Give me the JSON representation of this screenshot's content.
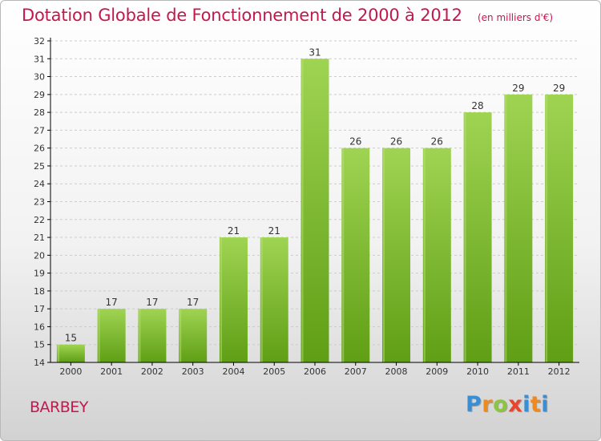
{
  "header": {
    "title": "Dotation Globale de Fonctionnement de 2000 à 2012",
    "unit_note": "(en milliers d'€)"
  },
  "commune_name": "BARBEY",
  "logo": {
    "text": "Proxiti"
  },
  "colors": {
    "title": "#c4174d",
    "bar_light": "#9fd452",
    "bar_dark": "#5f9e15",
    "axis": "#000000",
    "grid": "#cccccc"
  },
  "chart_data": {
    "type": "bar",
    "title": "Dotation Globale de Fonctionnement de 2000 à 2012",
    "subtitle": "(en milliers d'€)",
    "xlabel": "",
    "ylabel": "",
    "categories": [
      "2000",
      "2001",
      "2002",
      "2003",
      "2004",
      "2005",
      "2006",
      "2007",
      "2008",
      "2009",
      "2010",
      "2011",
      "2012"
    ],
    "values": [
      15,
      17,
      17,
      17,
      21,
      21,
      31,
      26,
      26,
      26,
      28,
      29,
      29
    ],
    "ylim": [
      14,
      32
    ],
    "yticks": [
      14,
      15,
      16,
      17,
      18,
      19,
      20,
      21,
      22,
      23,
      24,
      25,
      26,
      27,
      28,
      29,
      30,
      31,
      32
    ],
    "grid": "horizontal dashed",
    "legend": "none"
  }
}
